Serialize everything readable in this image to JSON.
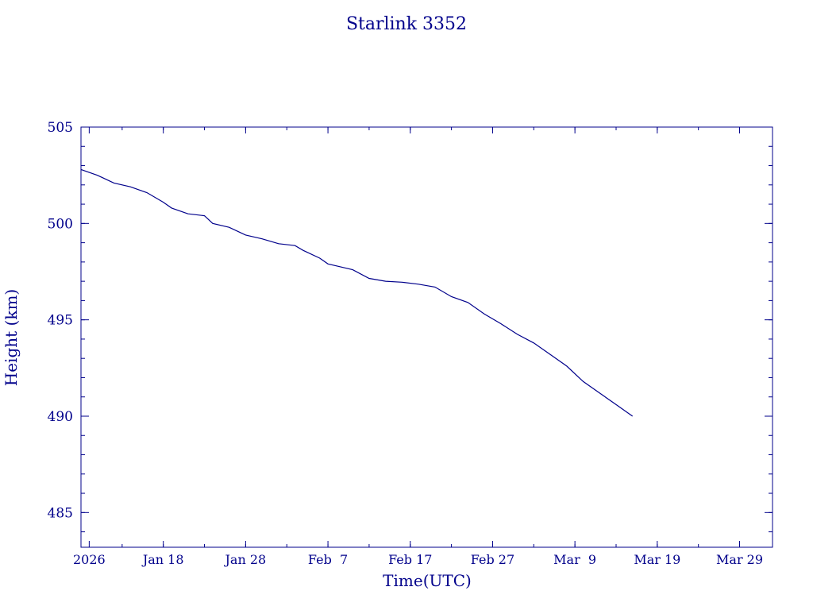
{
  "chart_data": {
    "type": "line",
    "title": "Starlink 3352",
    "xlabel": "Time(UTC)",
    "ylabel": "Height (km)",
    "xlim": [
      "2026-01-08",
      "2026-04-02"
    ],
    "ylim": [
      483.2,
      505.0
    ],
    "grid": false,
    "x_tick_labels": [
      {
        "date": "2026-01-09",
        "label": "2026"
      },
      {
        "date": "2026-01-18",
        "label": "Jan 18"
      },
      {
        "date": "2026-01-28",
        "label": "Jan 28"
      },
      {
        "date": "2026-02-07",
        "label": "Feb  7"
      },
      {
        "date": "2026-02-17",
        "label": "Feb 17"
      },
      {
        "date": "2026-02-27",
        "label": "Feb 27"
      },
      {
        "date": "2026-03-09",
        "label": "Mar  9"
      },
      {
        "date": "2026-03-19",
        "label": "Mar 19"
      },
      {
        "date": "2026-03-29",
        "label": "Mar 29"
      }
    ],
    "y_ticks": [
      485,
      490,
      495,
      500,
      505
    ],
    "y_tick_labels": [
      "485",
      "490",
      "495",
      "500",
      "505"
    ],
    "series": [
      {
        "color": "#00008b",
        "points": [
          {
            "x": "2026-01-08",
            "y": 502.8
          },
          {
            "x": "2026-01-10",
            "y": 502.5
          },
          {
            "x": "2026-01-12",
            "y": 502.1
          },
          {
            "x": "2026-01-14",
            "y": 501.9
          },
          {
            "x": "2026-01-16",
            "y": 501.6
          },
          {
            "x": "2026-01-18",
            "y": 501.1
          },
          {
            "x": "2026-01-19",
            "y": 500.8
          },
          {
            "x": "2026-01-21",
            "y": 500.5
          },
          {
            "x": "2026-01-23",
            "y": 500.4
          },
          {
            "x": "2026-01-24",
            "y": 500.0
          },
          {
            "x": "2026-01-26",
            "y": 499.8
          },
          {
            "x": "2026-01-28",
            "y": 499.4
          },
          {
            "x": "2026-01-30",
            "y": 499.2
          },
          {
            "x": "2026-02-01",
            "y": 498.95
          },
          {
            "x": "2026-02-03",
            "y": 498.85
          },
          {
            "x": "2026-02-04",
            "y": 498.6
          },
          {
            "x": "2026-02-06",
            "y": 498.2
          },
          {
            "x": "2026-02-07",
            "y": 497.9
          },
          {
            "x": "2026-02-08",
            "y": 497.8
          },
          {
            "x": "2026-02-10",
            "y": 497.6
          },
          {
            "x": "2026-02-12",
            "y": 497.15
          },
          {
            "x": "2026-02-14",
            "y": 497.0
          },
          {
            "x": "2026-02-16",
            "y": 496.95
          },
          {
            "x": "2026-02-18",
            "y": 496.85
          },
          {
            "x": "2026-02-20",
            "y": 496.7
          },
          {
            "x": "2026-02-22",
            "y": 496.2
          },
          {
            "x": "2026-02-24",
            "y": 495.9
          },
          {
            "x": "2026-02-26",
            "y": 495.3
          },
          {
            "x": "2026-02-28",
            "y": 494.8
          },
          {
            "x": "2026-03-02",
            "y": 494.25
          },
          {
            "x": "2026-03-04",
            "y": 493.8
          },
          {
            "x": "2026-03-06",
            "y": 493.2
          },
          {
            "x": "2026-03-08",
            "y": 492.6
          },
          {
            "x": "2026-03-10",
            "y": 491.8
          },
          {
            "x": "2026-03-12",
            "y": 491.2
          },
          {
            "x": "2026-03-14",
            "y": 490.6
          },
          {
            "x": "2026-03-16",
            "y": 490.0
          }
        ]
      }
    ]
  }
}
